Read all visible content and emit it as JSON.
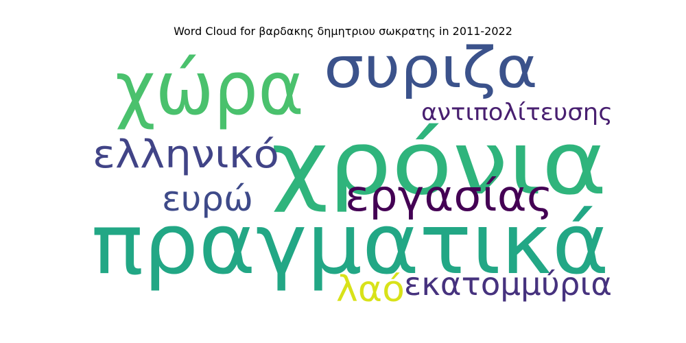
{
  "chart_data": {
    "type": "wordcloud",
    "title": "Word Cloud for βαρδακης δημητριου σωκρατης in 2011-2022",
    "words": [
      {
        "text": "χρόνια",
        "weight": 1.0,
        "color": "#2fb47c"
      },
      {
        "text": "πραγματικά",
        "weight": 0.95,
        "color": "#22a785"
      },
      {
        "text": "χώρα",
        "weight": 0.8,
        "color": "#4ac16d"
      },
      {
        "text": "συριζα",
        "weight": 0.6,
        "color": "#3b528b"
      },
      {
        "text": "εργασίας",
        "weight": 0.45,
        "color": "#440154"
      },
      {
        "text": "ελληνικό",
        "weight": 0.42,
        "color": "#414487"
      },
      {
        "text": "ευρώ",
        "weight": 0.38,
        "color": "#3e4a89"
      },
      {
        "text": "λαό",
        "weight": 0.36,
        "color": "#d8e219"
      },
      {
        "text": "εκατομμύρια",
        "weight": 0.35,
        "color": "#46327e"
      },
      {
        "text": "αντιπολίτευσης",
        "weight": 0.28,
        "color": "#481f70"
      }
    ]
  }
}
